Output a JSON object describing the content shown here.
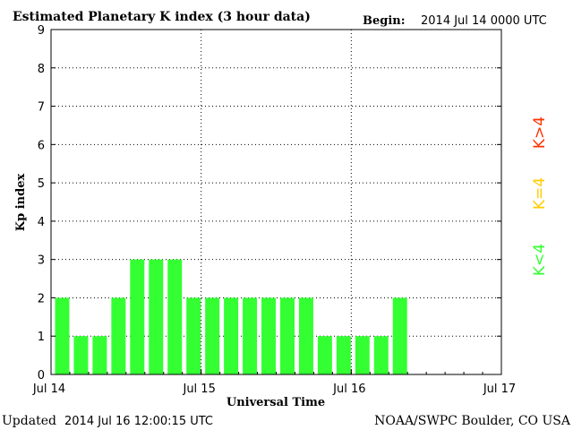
{
  "header": {
    "title": "Estimated Planetary K index (3 hour data)",
    "begin_label": "Begin:",
    "begin_value": "2014 Jul 14 0000 UTC"
  },
  "footer": {
    "updated_label": "Updated",
    "updated_value": "2014 Jul 16 12:00:15 UTC",
    "source": "NOAA/SWPC Boulder, CO USA"
  },
  "legend": {
    "below": "K<4",
    "equal": "K=4",
    "above": "K>4"
  },
  "colors": {
    "below": "#33ff33",
    "equal": "#ffcc00",
    "above": "#ff3300",
    "grid": "#000000"
  },
  "chart_data": {
    "type": "bar",
    "title": "Estimated Planetary K index (3 hour data)",
    "xlabel": "Universal Time",
    "ylabel": "Kp index",
    "ylim": [
      0,
      9
    ],
    "yticks": [
      0,
      1,
      2,
      3,
      4,
      5,
      6,
      7,
      8,
      9
    ],
    "xticks": [
      "Jul 14",
      "Jul 15",
      "Jul 16",
      "Jul 17"
    ],
    "interval_hours": 3,
    "x": [
      "2014-07-14 00:00",
      "2014-07-14 03:00",
      "2014-07-14 06:00",
      "2014-07-14 09:00",
      "2014-07-14 12:00",
      "2014-07-14 15:00",
      "2014-07-14 18:00",
      "2014-07-14 21:00",
      "2014-07-15 00:00",
      "2014-07-15 03:00",
      "2014-07-15 06:00",
      "2014-07-15 09:00",
      "2014-07-15 12:00",
      "2014-07-15 15:00",
      "2014-07-15 18:00",
      "2014-07-15 21:00",
      "2014-07-16 00:00",
      "2014-07-16 03:00",
      "2014-07-16 06:00"
    ],
    "values": [
      2,
      1,
      1,
      2,
      3,
      3,
      3,
      2,
      2,
      2,
      2,
      2,
      2,
      2,
      1,
      1,
      1,
      1,
      2
    ],
    "grid": true
  }
}
